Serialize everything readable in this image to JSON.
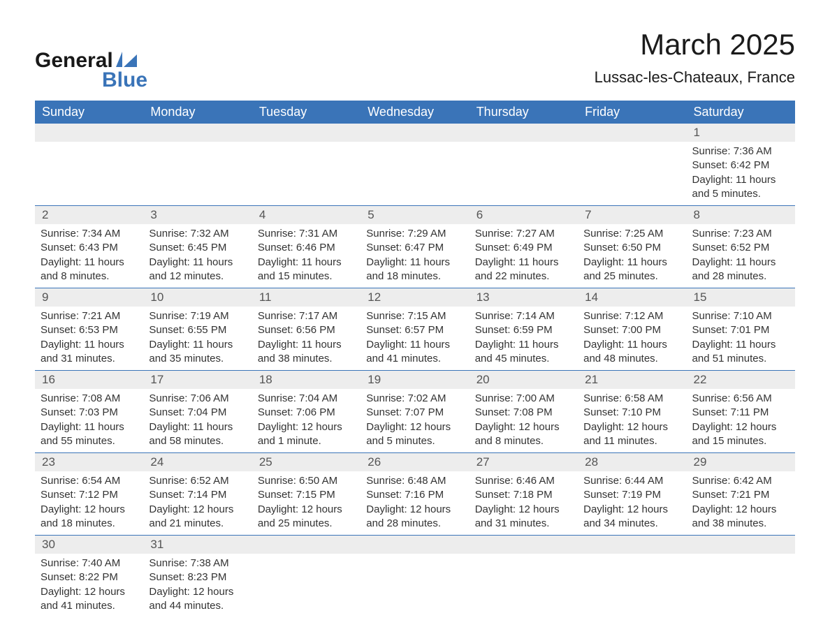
{
  "logo": {
    "text1": "General",
    "text2": "Blue",
    "icon_color": "#3a74b8"
  },
  "title": "March 2025",
  "location": "Lussac-les-Chateaux, France",
  "colors": {
    "header_bg": "#3a74b8",
    "header_text": "#ffffff",
    "daybar_bg": "#ededed",
    "daybar_text": "#555555",
    "body_text": "#333333",
    "border": "#3a74b8"
  },
  "weekdays": [
    "Sunday",
    "Monday",
    "Tuesday",
    "Wednesday",
    "Thursday",
    "Friday",
    "Saturday"
  ],
  "weeks": [
    [
      null,
      null,
      null,
      null,
      null,
      null,
      {
        "n": "1",
        "sunrise": "Sunrise: 7:36 AM",
        "sunset": "Sunset: 6:42 PM",
        "daylight": "Daylight: 11 hours and 5 minutes."
      }
    ],
    [
      {
        "n": "2",
        "sunrise": "Sunrise: 7:34 AM",
        "sunset": "Sunset: 6:43 PM",
        "daylight": "Daylight: 11 hours and 8 minutes."
      },
      {
        "n": "3",
        "sunrise": "Sunrise: 7:32 AM",
        "sunset": "Sunset: 6:45 PM",
        "daylight": "Daylight: 11 hours and 12 minutes."
      },
      {
        "n": "4",
        "sunrise": "Sunrise: 7:31 AM",
        "sunset": "Sunset: 6:46 PM",
        "daylight": "Daylight: 11 hours and 15 minutes."
      },
      {
        "n": "5",
        "sunrise": "Sunrise: 7:29 AM",
        "sunset": "Sunset: 6:47 PM",
        "daylight": "Daylight: 11 hours and 18 minutes."
      },
      {
        "n": "6",
        "sunrise": "Sunrise: 7:27 AM",
        "sunset": "Sunset: 6:49 PM",
        "daylight": "Daylight: 11 hours and 22 minutes."
      },
      {
        "n": "7",
        "sunrise": "Sunrise: 7:25 AM",
        "sunset": "Sunset: 6:50 PM",
        "daylight": "Daylight: 11 hours and 25 minutes."
      },
      {
        "n": "8",
        "sunrise": "Sunrise: 7:23 AM",
        "sunset": "Sunset: 6:52 PM",
        "daylight": "Daylight: 11 hours and 28 minutes."
      }
    ],
    [
      {
        "n": "9",
        "sunrise": "Sunrise: 7:21 AM",
        "sunset": "Sunset: 6:53 PM",
        "daylight": "Daylight: 11 hours and 31 minutes."
      },
      {
        "n": "10",
        "sunrise": "Sunrise: 7:19 AM",
        "sunset": "Sunset: 6:55 PM",
        "daylight": "Daylight: 11 hours and 35 minutes."
      },
      {
        "n": "11",
        "sunrise": "Sunrise: 7:17 AM",
        "sunset": "Sunset: 6:56 PM",
        "daylight": "Daylight: 11 hours and 38 minutes."
      },
      {
        "n": "12",
        "sunrise": "Sunrise: 7:15 AM",
        "sunset": "Sunset: 6:57 PM",
        "daylight": "Daylight: 11 hours and 41 minutes."
      },
      {
        "n": "13",
        "sunrise": "Sunrise: 7:14 AM",
        "sunset": "Sunset: 6:59 PM",
        "daylight": "Daylight: 11 hours and 45 minutes."
      },
      {
        "n": "14",
        "sunrise": "Sunrise: 7:12 AM",
        "sunset": "Sunset: 7:00 PM",
        "daylight": "Daylight: 11 hours and 48 minutes."
      },
      {
        "n": "15",
        "sunrise": "Sunrise: 7:10 AM",
        "sunset": "Sunset: 7:01 PM",
        "daylight": "Daylight: 11 hours and 51 minutes."
      }
    ],
    [
      {
        "n": "16",
        "sunrise": "Sunrise: 7:08 AM",
        "sunset": "Sunset: 7:03 PM",
        "daylight": "Daylight: 11 hours and 55 minutes."
      },
      {
        "n": "17",
        "sunrise": "Sunrise: 7:06 AM",
        "sunset": "Sunset: 7:04 PM",
        "daylight": "Daylight: 11 hours and 58 minutes."
      },
      {
        "n": "18",
        "sunrise": "Sunrise: 7:04 AM",
        "sunset": "Sunset: 7:06 PM",
        "daylight": "Daylight: 12 hours and 1 minute."
      },
      {
        "n": "19",
        "sunrise": "Sunrise: 7:02 AM",
        "sunset": "Sunset: 7:07 PM",
        "daylight": "Daylight: 12 hours and 5 minutes."
      },
      {
        "n": "20",
        "sunrise": "Sunrise: 7:00 AM",
        "sunset": "Sunset: 7:08 PM",
        "daylight": "Daylight: 12 hours and 8 minutes."
      },
      {
        "n": "21",
        "sunrise": "Sunrise: 6:58 AM",
        "sunset": "Sunset: 7:10 PM",
        "daylight": "Daylight: 12 hours and 11 minutes."
      },
      {
        "n": "22",
        "sunrise": "Sunrise: 6:56 AM",
        "sunset": "Sunset: 7:11 PM",
        "daylight": "Daylight: 12 hours and 15 minutes."
      }
    ],
    [
      {
        "n": "23",
        "sunrise": "Sunrise: 6:54 AM",
        "sunset": "Sunset: 7:12 PM",
        "daylight": "Daylight: 12 hours and 18 minutes."
      },
      {
        "n": "24",
        "sunrise": "Sunrise: 6:52 AM",
        "sunset": "Sunset: 7:14 PM",
        "daylight": "Daylight: 12 hours and 21 minutes."
      },
      {
        "n": "25",
        "sunrise": "Sunrise: 6:50 AM",
        "sunset": "Sunset: 7:15 PM",
        "daylight": "Daylight: 12 hours and 25 minutes."
      },
      {
        "n": "26",
        "sunrise": "Sunrise: 6:48 AM",
        "sunset": "Sunset: 7:16 PM",
        "daylight": "Daylight: 12 hours and 28 minutes."
      },
      {
        "n": "27",
        "sunrise": "Sunrise: 6:46 AM",
        "sunset": "Sunset: 7:18 PM",
        "daylight": "Daylight: 12 hours and 31 minutes."
      },
      {
        "n": "28",
        "sunrise": "Sunrise: 6:44 AM",
        "sunset": "Sunset: 7:19 PM",
        "daylight": "Daylight: 12 hours and 34 minutes."
      },
      {
        "n": "29",
        "sunrise": "Sunrise: 6:42 AM",
        "sunset": "Sunset: 7:21 PM",
        "daylight": "Daylight: 12 hours and 38 minutes."
      }
    ],
    [
      {
        "n": "30",
        "sunrise": "Sunrise: 7:40 AM",
        "sunset": "Sunset: 8:22 PM",
        "daylight": "Daylight: 12 hours and 41 minutes."
      },
      {
        "n": "31",
        "sunrise": "Sunrise: 7:38 AM",
        "sunset": "Sunset: 8:23 PM",
        "daylight": "Daylight: 12 hours and 44 minutes."
      },
      null,
      null,
      null,
      null,
      null
    ]
  ]
}
